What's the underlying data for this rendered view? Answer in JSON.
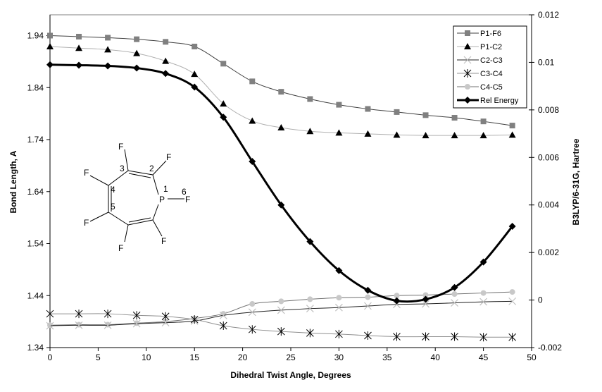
{
  "chart_data": {
    "type": "line",
    "xlabel": "Dihedral Twist Angle, Degrees",
    "ylabel": "Bond Length, A",
    "y2label": "B3LYP/6-31G, Hartree",
    "xlim": [
      0,
      50
    ],
    "ylim": [
      1.34,
      1.98
    ],
    "y2lim": [
      -0.002,
      0.012
    ],
    "xticks": [
      0,
      5,
      10,
      15,
      20,
      25,
      30,
      35,
      40,
      45,
      50
    ],
    "yticks": [
      1.34,
      1.44,
      1.54,
      1.64,
      1.74,
      1.84,
      1.94
    ],
    "ytick_labels": [
      "1.34",
      "1.44",
      "1.54",
      "1.64",
      "1.74",
      "1.84",
      "1.94"
    ],
    "y2ticks": [
      -0.002,
      0,
      0.002,
      0.004,
      0.006,
      0.008,
      0.01,
      0.012
    ],
    "y2tick_labels": [
      "-0.002",
      "0",
      "0.002",
      "0.004",
      "0.006",
      "0.008",
      "0.01",
      "0.012"
    ],
    "grid": false,
    "legend_position": "top-right",
    "x": [
      0,
      3,
      6,
      9,
      12,
      15,
      18,
      21,
      24,
      27,
      30,
      33,
      36,
      39,
      42,
      45,
      48
    ],
    "series": [
      {
        "name": "P1-F6",
        "axis": "left",
        "marker": "square",
        "color": "#808080",
        "line": "#404040",
        "values": [
          1.94,
          1.938,
          1.936,
          1.933,
          1.928,
          1.919,
          1.886,
          1.852,
          1.832,
          1.818,
          1.807,
          1.799,
          1.793,
          1.787,
          1.782,
          1.775,
          1.767
        ]
      },
      {
        "name": "P1-C2",
        "axis": "left",
        "marker": "triangle",
        "color": "#000000",
        "line": "#b0b0b0",
        "values": [
          1.919,
          1.916,
          1.913,
          1.906,
          1.891,
          1.866,
          1.809,
          1.776,
          1.763,
          1.756,
          1.753,
          1.751,
          1.749,
          1.748,
          1.748,
          1.748,
          1.749
        ]
      },
      {
        "name": "C2-C3",
        "axis": "left",
        "marker": "x",
        "color": "#c0c0c0",
        "line": "#202020",
        "values": [
          1.382,
          1.383,
          1.383,
          1.386,
          1.388,
          1.391,
          1.402,
          1.408,
          1.412,
          1.415,
          1.417,
          1.42,
          1.423,
          1.424,
          1.426,
          1.428,
          1.429
        ]
      },
      {
        "name": "C3-C4",
        "axis": "left",
        "marker": "asterisk",
        "color": "#000000",
        "line": "#909090",
        "values": [
          1.405,
          1.405,
          1.405,
          1.402,
          1.4,
          1.394,
          1.382,
          1.375,
          1.371,
          1.368,
          1.366,
          1.363,
          1.361,
          1.361,
          1.361,
          1.36,
          1.36
        ]
      },
      {
        "name": "C4-C5",
        "axis": "left",
        "marker": "circle",
        "color": "#c8c8c8",
        "line": "#707070",
        "values": [
          1.383,
          1.384,
          1.384,
          1.387,
          1.39,
          1.396,
          1.405,
          1.424,
          1.429,
          1.433,
          1.436,
          1.437,
          1.44,
          1.441,
          1.443,
          1.445,
          1.447
        ]
      },
      {
        "name": "Rel Energy",
        "axis": "right",
        "marker": "diamond",
        "color": "#000000",
        "line": "#000000",
        "values": [
          0.0099,
          0.00988,
          0.00985,
          0.00976,
          0.00953,
          0.00896,
          0.00769,
          0.00583,
          0.004,
          0.00246,
          0.00124,
          0.00041,
          -3e-05,
          3e-05,
          0.00053,
          0.0016,
          0.0031
        ]
      }
    ]
  },
  "molecule": {
    "atoms": [
      "P",
      "F",
      "F",
      "F",
      "F",
      "F",
      "F",
      "F"
    ],
    "numbers": [
      "1",
      "2",
      "3",
      "4",
      "5",
      "6"
    ]
  }
}
